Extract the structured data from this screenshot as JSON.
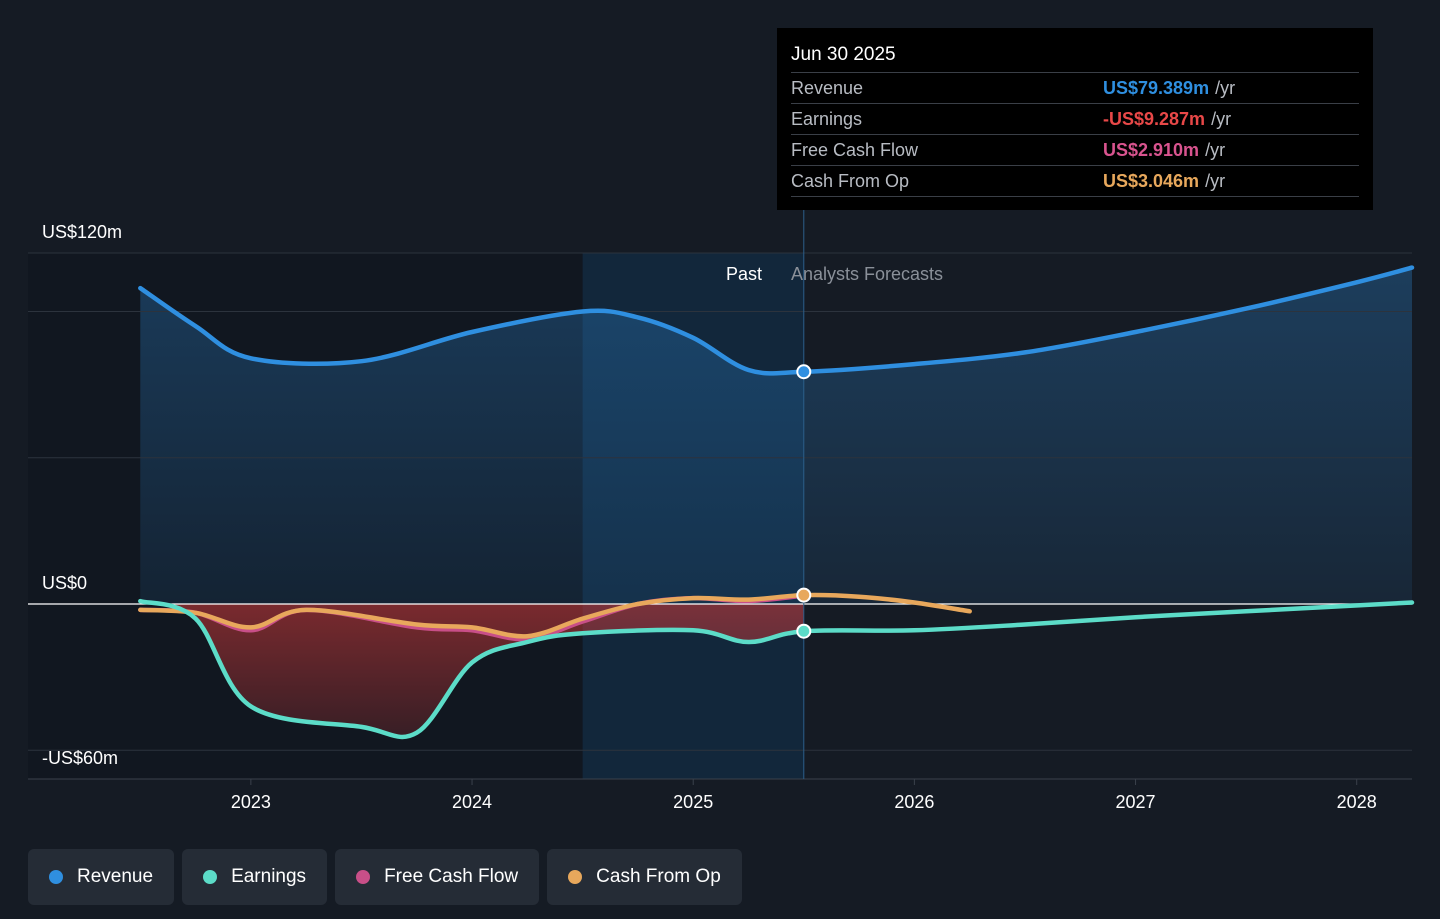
{
  "tooltip": {
    "date": "Jun 30 2025",
    "rows": [
      {
        "name": "Revenue",
        "value": "US$79.389m",
        "unit": "/yr",
        "color": "#2f8fe0"
      },
      {
        "name": "Earnings",
        "value": "-US$9.287m",
        "unit": "/yr",
        "color": "#e84848"
      },
      {
        "name": "Free Cash Flow",
        "value": "US$2.910m",
        "unit": "/yr",
        "color": "#d9548f"
      },
      {
        "name": "Cash From Op",
        "value": "US$3.046m",
        "unit": "/yr",
        "color": "#e8a85c"
      }
    ]
  },
  "legend": [
    {
      "label": "Revenue",
      "color": "#2f8fe0"
    },
    {
      "label": "Earnings",
      "color": "#5cdcc8"
    },
    {
      "label": "Free Cash Flow",
      "color": "#c84f88"
    },
    {
      "label": "Cash From Op",
      "color": "#e8a85c"
    }
  ],
  "chart_data": {
    "type": "line",
    "y_top_label": "US$120m",
    "y_zero_label": "US$0",
    "y_bottom_label": "-US$60m",
    "past_label": "Past",
    "forecast_label": "Analysts Forecasts",
    "ylim": [
      -60,
      120
    ],
    "xlim": [
      2022.25,
      2028.25
    ],
    "x_ticks": [
      2023,
      2024,
      2025,
      2026,
      2027,
      2028
    ],
    "x_tick_labels": [
      "2023",
      "2024",
      "2025",
      "2026",
      "2027",
      "2028"
    ],
    "highlight_band": [
      2024.5,
      2025.5
    ],
    "divider_x": 2025.5,
    "series": [
      {
        "name": "Revenue",
        "color": "#2f8fe0",
        "points": [
          [
            2022.5,
            108
          ],
          [
            2022.75,
            95
          ],
          [
            2023.0,
            84
          ],
          [
            2023.5,
            83
          ],
          [
            2024.0,
            93
          ],
          [
            2024.5,
            100
          ],
          [
            2024.75,
            98
          ],
          [
            2025.0,
            91
          ],
          [
            2025.25,
            80
          ],
          [
            2025.5,
            79.4
          ],
          [
            2026.0,
            82
          ],
          [
            2026.5,
            86
          ],
          [
            2027.0,
            93
          ],
          [
            2027.5,
            101
          ],
          [
            2028.0,
            110
          ],
          [
            2028.25,
            115
          ]
        ]
      },
      {
        "name": "Earnings",
        "color": "#5cdcc8",
        "points": [
          [
            2022.5,
            1
          ],
          [
            2022.75,
            -5
          ],
          [
            2023.0,
            -35
          ],
          [
            2023.5,
            -42
          ],
          [
            2023.75,
            -44
          ],
          [
            2024.0,
            -20
          ],
          [
            2024.25,
            -13
          ],
          [
            2024.5,
            -10
          ],
          [
            2025.0,
            -9
          ],
          [
            2025.25,
            -13
          ],
          [
            2025.5,
            -9.3
          ],
          [
            2026.0,
            -9
          ],
          [
            2026.5,
            -7
          ],
          [
            2027.0,
            -4.5
          ],
          [
            2027.5,
            -2.5
          ],
          [
            2028.25,
            0.5
          ]
        ]
      },
      {
        "name": "Free Cash Flow",
        "color": "#c84f88",
        "points": [
          [
            2022.5,
            -2
          ],
          [
            2022.75,
            -3
          ],
          [
            2023.0,
            -9
          ],
          [
            2023.25,
            -2
          ],
          [
            2023.75,
            -8
          ],
          [
            2024.0,
            -9
          ],
          [
            2024.25,
            -12
          ],
          [
            2024.5,
            -6
          ],
          [
            2024.75,
            0
          ],
          [
            2025.0,
            2
          ],
          [
            2025.25,
            1
          ],
          [
            2025.5,
            2.9
          ]
        ]
      },
      {
        "name": "Cash From Op",
        "color": "#e8a85c",
        "points": [
          [
            2022.5,
            -2
          ],
          [
            2022.75,
            -3
          ],
          [
            2023.0,
            -8
          ],
          [
            2023.25,
            -2
          ],
          [
            2023.75,
            -7
          ],
          [
            2024.0,
            -8
          ],
          [
            2024.25,
            -11
          ],
          [
            2024.5,
            -5
          ],
          [
            2024.75,
            0
          ],
          [
            2025.0,
            2
          ],
          [
            2025.25,
            1.5
          ],
          [
            2025.5,
            3.05
          ],
          [
            2025.75,
            2.5
          ],
          [
            2026.0,
            0.5
          ],
          [
            2026.25,
            -2.5
          ]
        ]
      }
    ]
  }
}
